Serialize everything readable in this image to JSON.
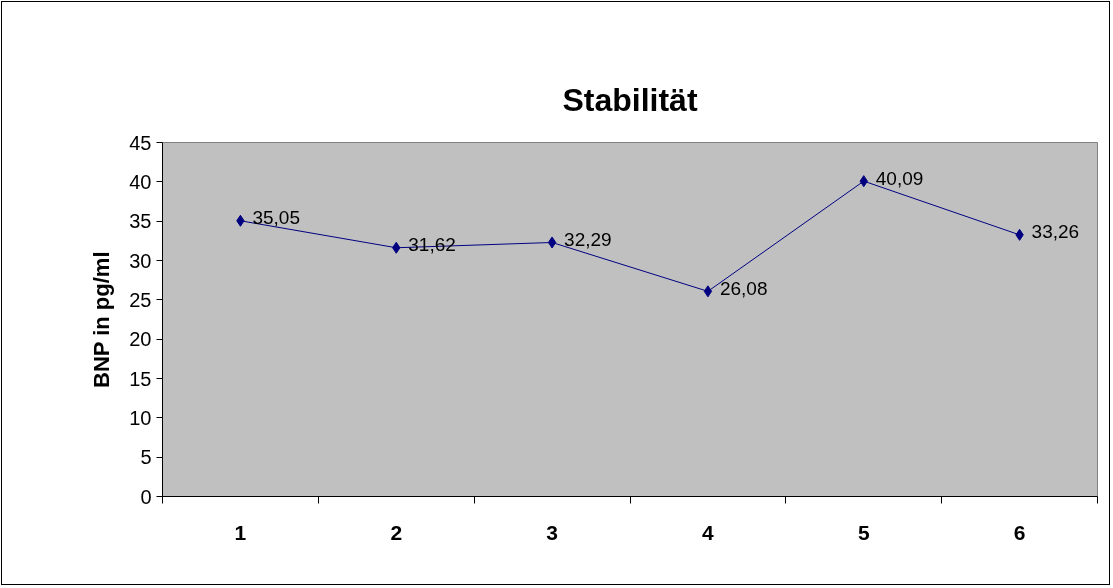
{
  "chart_data": {
    "type": "line",
    "title": "Stabilität",
    "ylabel": "BNP in pg/ml",
    "categories": [
      "1",
      "2",
      "3",
      "4",
      "5",
      "6"
    ],
    "series": [
      {
        "color": "#000080",
        "values": [
          35.05,
          31.62,
          32.29,
          26.08,
          40.09,
          33.26
        ],
        "value_labels": [
          "35,05",
          "31,62",
          "32,29",
          "26,08",
          "40,09",
          "33,26"
        ]
      }
    ],
    "ylim": [
      0,
      45
    ],
    "yticks": [
      0,
      5,
      10,
      15,
      20,
      25,
      30,
      35,
      40,
      45
    ],
    "grid": false,
    "marker": "diamond",
    "line_style": "solid"
  }
}
